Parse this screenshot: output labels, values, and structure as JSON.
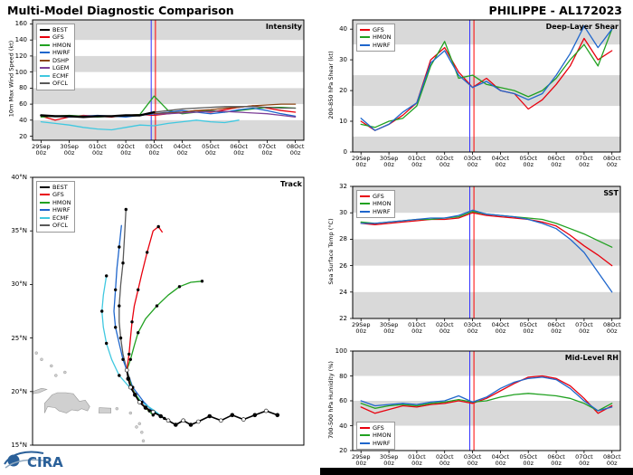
{
  "header": {
    "left": "Multi-Model Diagnostic Comparison",
    "right": "PHILIPPE - AL172023"
  },
  "time_axis": {
    "dates": [
      "29Sep",
      "30Sep",
      "01Oct",
      "02Oct",
      "03Oct",
      "04Oct",
      "05Oct",
      "06Oct",
      "07Oct",
      "08Oct"
    ],
    "hour": "00z",
    "positions": [
      0,
      1,
      2,
      3,
      4,
      5,
      6,
      7,
      8,
      9
    ]
  },
  "colors": {
    "BEST": "#000000",
    "GFS": "#e8000d",
    "HMON": "#21a121",
    "HWRF": "#1f66cc",
    "DSHP": "#8b4513",
    "LGEM": "#7d3f98",
    "ECMF": "#40c8e0",
    "OFCL": "#595959",
    "band": "#d9d9d9",
    "land": "#d0d0d0",
    "land_edge": "#9a9a9a",
    "vline_blue": "#3333ff",
    "vline_red": "#ff0000"
  },
  "panels": {
    "intensity": {
      "label": "Intensity",
      "ylabel": "10m Max Wind Speed (kt)",
      "legend": [
        "BEST",
        "GFS",
        "HMON",
        "HWRF",
        "DSHP",
        "LGEM",
        "ECMF",
        "OFCL"
      ]
    },
    "track": {
      "label": "Track",
      "legend": [
        "BEST",
        "GFS",
        "HMON",
        "HWRF",
        "ECMF",
        "OFCL"
      ]
    },
    "shear": {
      "label": "Deep-Layer Shear",
      "ylabel": "200-850 hPa Shear (kt)",
      "legend": [
        "GFS",
        "HMON",
        "HWRF"
      ]
    },
    "sst": {
      "label": "SST",
      "ylabel": "Sea Surface Temp (°C)",
      "legend": [
        "GFS",
        "HMON",
        "HWRF"
      ]
    },
    "rh": {
      "label": "Mid-Level RH",
      "ylabel": "700-500 hPa Humidity (%)",
      "legend": [
        "GFS",
        "HMON",
        "HWRF"
      ]
    }
  },
  "footer": {
    "logo_text": "CIRA"
  },
  "chart_data": [
    {
      "id": "intensity",
      "type": "line",
      "title": "Intensity",
      "ylabel": "10m Max Wind Speed (kt)",
      "xlim": [
        -0.3,
        9.3
      ],
      "ylim": [
        15,
        165
      ],
      "yticks": [
        20,
        40,
        60,
        80,
        100,
        120,
        140,
        160
      ],
      "bands": [
        [
          140,
          165
        ],
        [
          100,
          120
        ],
        [
          60,
          80
        ],
        [
          15,
          40
        ]
      ],
      "xticks_time": true,
      "vlines": [
        {
          "x": 3.9,
          "color": "#3333ff"
        },
        {
          "x": 4.05,
          "color": "#ff0000"
        }
      ],
      "series": [
        {
          "name": "GFS",
          "x0": 0,
          "dx": 0.5,
          "y": [
            45,
            40,
            44,
            46,
            45,
            44,
            46,
            47,
            46,
            48,
            50,
            52,
            50,
            53,
            56,
            58,
            55,
            52,
            50
          ]
        },
        {
          "name": "HMON",
          "x0": 0,
          "dx": 0.5,
          "y": [
            44,
            45,
            46,
            45,
            44,
            45,
            46,
            47,
            70,
            52,
            48,
            50,
            52,
            50,
            52,
            54,
            56,
            56,
            55
          ]
        },
        {
          "name": "HWRF",
          "x0": 0,
          "dx": 0.5,
          "y": [
            46,
            45,
            44,
            45,
            46,
            45,
            44,
            46,
            48,
            50,
            52,
            50,
            48,
            50,
            53,
            55,
            52,
            48,
            45
          ]
        },
        {
          "name": "ECMF",
          "x0": 0,
          "dx": 0.5,
          "y": [
            38,
            36,
            34,
            31,
            29,
            28,
            31,
            34,
            33,
            36,
            38,
            40,
            38,
            37,
            40
          ]
        },
        {
          "name": "DSHP",
          "x0": 4,
          "dx": 0.5,
          "y": [
            48,
            49,
            50,
            52,
            53,
            55,
            56,
            58,
            59,
            60,
            60
          ]
        },
        {
          "name": "LGEM",
          "x0": 4,
          "dx": 0.5,
          "y": [
            47,
            48,
            49,
            50,
            51,
            51,
            50,
            49,
            48,
            46,
            44
          ]
        },
        {
          "name": "OFCL",
          "x0": 4,
          "dx": 0.5,
          "y": [
            50,
            52,
            54,
            55,
            56,
            57,
            57,
            57,
            56,
            55,
            55
          ]
        },
        {
          "name": "BEST",
          "x0": 0,
          "dx": 0.5,
          "lw": 2.4,
          "y": [
            46,
            45,
            45,
            44,
            45,
            45,
            46,
            46,
            50
          ]
        }
      ]
    },
    {
      "id": "track",
      "type": "map",
      "title": "Track",
      "xlim": [
        -76,
        -40
      ],
      "ylim": [
        15,
        40
      ],
      "yticks": [
        15,
        20,
        25,
        30,
        35,
        40
      ],
      "ytick_suffix": "°N",
      "islands": [
        {
          "poly": [
            [
              -74.4,
              18.0
            ],
            [
              -74.0,
              18.6
            ],
            [
              -73.0,
              18.5
            ],
            [
              -72.5,
              18.2
            ],
            [
              -71.5,
              18.0
            ],
            [
              -70.8,
              18.3
            ],
            [
              -70.0,
              18.2
            ],
            [
              -69.5,
              18.4
            ],
            [
              -68.7,
              18.2
            ],
            [
              -68.4,
              18.6
            ],
            [
              -69.0,
              19.2
            ],
            [
              -69.8,
              19.1
            ],
            [
              -70.6,
              19.8
            ],
            [
              -71.6,
              19.9
            ],
            [
              -72.7,
              19.9
            ],
            [
              -73.4,
              19.7
            ],
            [
              -74.4,
              18.9
            ]
          ]
        },
        {
          "poly": [
            [
              -67.2,
              18.0
            ],
            [
              -65.6,
              18.0
            ],
            [
              -65.6,
              18.45
            ],
            [
              -67.15,
              18.5
            ]
          ]
        },
        {
          "poly": [
            [
              -76.0,
              20.0
            ],
            [
              -74.8,
              20.3
            ],
            [
              -74.1,
              20.2
            ],
            [
              -75.1,
              19.9
            ],
            [
              -76.0,
              19.8
            ]
          ]
        },
        {
          "dot": [
            -61.5,
            16.2
          ]
        },
        {
          "dot": [
            -61.3,
            15.4
          ]
        },
        {
          "dot": [
            -61.8,
            17.0
          ]
        },
        {
          "dot": [
            -62.2,
            16.7
          ]
        },
        {
          "dot": [
            -63.0,
            18.0
          ]
        },
        {
          "dot": [
            -64.8,
            18.4
          ]
        },
        {
          "dot": [
            -71.7,
            21.8
          ]
        },
        {
          "dot": [
            -72.9,
            21.5
          ]
        },
        {
          "dot": [
            -73.5,
            22.4
          ]
        },
        {
          "dot": [
            -74.8,
            23.0
          ]
        },
        {
          "dot": [
            -75.5,
            23.6
          ]
        }
      ],
      "series": [
        {
          "name": "OFCL",
          "markers": "dots",
          "x": [
            -63.5,
            -64.0,
            -64.3,
            -64.5,
            -64.5,
            -64.3,
            -64.0,
            -63.8,
            -63.6
          ],
          "y": [
            22.0,
            23.5,
            25.0,
            26.5,
            28.0,
            30.0,
            32.0,
            34.5,
            37.0
          ]
        },
        {
          "name": "HWRF",
          "markers": "dots",
          "x": [
            -59.8,
            -61.2,
            -62.7,
            -63.5,
            -64.0,
            -64.5,
            -65.0,
            -65.2,
            -65.0,
            -64.8,
            -64.5,
            -64.2
          ],
          "y": [
            18.0,
            19.0,
            20.4,
            22.0,
            23.0,
            24.5,
            26.0,
            27.5,
            29.5,
            31.5,
            33.5,
            35.5
          ]
        },
        {
          "name": "ECMF",
          "markers": "dots",
          "x": [
            -58.5,
            -60.0,
            -61.5,
            -63.0,
            -64.5,
            -65.5,
            -66.2,
            -66.6,
            -66.8,
            -66.6,
            -66.2
          ],
          "y": [
            17.5,
            18.3,
            19.0,
            20.3,
            21.5,
            23.0,
            24.5,
            26.0,
            27.5,
            29.0,
            30.8
          ]
        },
        {
          "name": "HMON",
          "markers": "dots",
          "x": [
            -60.0,
            -61.5,
            -62.8,
            -63.5,
            -63.0,
            -62.5,
            -62.0,
            -61.0,
            -59.5,
            -58.0,
            -56.5,
            -55.0,
            -53.5
          ],
          "y": [
            17.8,
            18.8,
            20.3,
            22.0,
            23.0,
            24.3,
            25.5,
            26.8,
            28.0,
            29.0,
            29.8,
            30.2,
            30.3
          ]
        },
        {
          "name": "GFS",
          "markers": "dots",
          "x": [
            -60.5,
            -62.0,
            -63.0,
            -63.5,
            -63.2,
            -63.0,
            -62.8,
            -62.5,
            -62.0,
            -61.5,
            -60.8,
            -60.0,
            -59.3,
            -58.8
          ],
          "y": [
            18.2,
            19.2,
            20.5,
            22.0,
            23.5,
            25.0,
            26.5,
            28.0,
            29.5,
            31.0,
            33.0,
            35.0,
            35.4,
            34.9
          ]
        },
        {
          "name": "BEST",
          "markers": "alt",
          "lw": 1.6,
          "x": [
            -43.5,
            -45.0,
            -46.5,
            -48.0,
            -49.5,
            -51.0,
            -52.5,
            -54.0,
            -55.0,
            -56.0,
            -57.0,
            -58.0,
            -59.0,
            -60.0,
            -61.0,
            -61.8,
            -62.4,
            -63.0,
            -63.3,
            -63.5
          ],
          "y": [
            17.8,
            18.2,
            17.8,
            17.4,
            17.8,
            17.3,
            17.7,
            17.2,
            16.9,
            17.3,
            16.9,
            17.3,
            17.7,
            18.1,
            18.5,
            19.0,
            19.7,
            20.4,
            21.2,
            22.0
          ]
        }
      ]
    },
    {
      "id": "shear",
      "type": "line",
      "title": "Deep-Layer Shear",
      "ylabel": "200-850 hPa Shear (kt)",
      "xlim": [
        -0.3,
        9.3
      ],
      "ylim": [
        0,
        43
      ],
      "yticks": [
        0,
        10,
        20,
        30,
        40
      ],
      "bands": [
        [
          35,
          43
        ],
        [
          15,
          25
        ],
        [
          0,
          5
        ]
      ],
      "xticks_time": true,
      "vlines": [
        {
          "x": 3.9,
          "color": "#3333ff"
        },
        {
          "x": 4.05,
          "color": "#ff0000"
        }
      ],
      "series": [
        {
          "name": "GFS",
          "x0": 0,
          "dx": 0.5,
          "y": [
            10,
            7,
            9,
            12,
            16,
            30,
            34,
            26,
            21,
            24,
            20,
            19,
            14,
            17,
            22,
            28,
            37,
            30,
            33
          ]
        },
        {
          "name": "HMON",
          "x0": 0,
          "dx": 0.5,
          "y": [
            9,
            8,
            10,
            11,
            15,
            28,
            36,
            24,
            25,
            22,
            21,
            20,
            18,
            20,
            24,
            30,
            35,
            28,
            40
          ]
        },
        {
          "name": "HWRF",
          "x0": 0,
          "dx": 0.5,
          "y": [
            11,
            7,
            9,
            13,
            16,
            29,
            33,
            25,
            21,
            23,
            20,
            19,
            17,
            19,
            25,
            32,
            41,
            34,
            40
          ]
        }
      ]
    },
    {
      "id": "sst",
      "type": "line",
      "title": "SST",
      "ylabel": "Sea Surface Temp (°C)",
      "xlim": [
        -0.3,
        9.3
      ],
      "ylim": [
        22,
        32
      ],
      "yticks": [
        22,
        24,
        26,
        28,
        30,
        32
      ],
      "bands": [
        [
          30,
          32
        ],
        [
          26,
          28
        ],
        [
          22,
          24
        ]
      ],
      "xticks_time": true,
      "vlines": [
        {
          "x": 3.9,
          "color": "#3333ff"
        },
        {
          "x": 4.05,
          "color": "#ff0000"
        }
      ],
      "series": [
        {
          "name": "GFS",
          "x0": 0,
          "dx": 0.5,
          "y": [
            29.2,
            29.1,
            29.2,
            29.3,
            29.4,
            29.5,
            29.5,
            29.6,
            30.0,
            29.8,
            29.7,
            29.6,
            29.5,
            29.3,
            29.0,
            28.3,
            27.5,
            26.8,
            26.0
          ]
        },
        {
          "name": "HMON",
          "x0": 0,
          "dx": 0.5,
          "y": [
            29.3,
            29.2,
            29.3,
            29.4,
            29.5,
            29.5,
            29.6,
            29.7,
            30.1,
            29.9,
            29.8,
            29.7,
            29.6,
            29.5,
            29.2,
            28.8,
            28.4,
            27.9,
            27.4
          ]
        },
        {
          "name": "HWRF",
          "x0": 0,
          "dx": 0.5,
          "y": [
            29.2,
            29.2,
            29.3,
            29.4,
            29.5,
            29.6,
            29.6,
            29.8,
            30.2,
            29.9,
            29.8,
            29.7,
            29.5,
            29.2,
            28.8,
            28.0,
            27.0,
            25.5,
            24.0
          ]
        }
      ]
    },
    {
      "id": "rh",
      "type": "line",
      "title": "Mid-Level RH",
      "ylabel": "700-500 hPa Humidity (%)",
      "xlim": [
        -0.3,
        9.3
      ],
      "ylim": [
        20,
        100
      ],
      "yticks": [
        20,
        40,
        60,
        80,
        100
      ],
      "bands": [
        [
          80,
          100
        ],
        [
          40,
          60
        ]
      ],
      "xticks_time": true,
      "vlines": [
        {
          "x": 3.9,
          "color": "#3333ff"
        },
        {
          "x": 4.05,
          "color": "#ff0000"
        }
      ],
      "series": [
        {
          "name": "GFS",
          "x0": 0,
          "dx": 0.5,
          "y": [
            55,
            50,
            53,
            56,
            55,
            57,
            58,
            60,
            58,
            62,
            68,
            74,
            79,
            80,
            78,
            72,
            62,
            50,
            56
          ]
        },
        {
          "name": "HMON",
          "x0": 0,
          "dx": 0.5,
          "y": [
            58,
            54,
            56,
            57,
            56,
            58,
            59,
            61,
            59,
            60,
            63,
            65,
            66,
            65,
            64,
            62,
            58,
            52,
            58
          ]
        },
        {
          "name": "HWRF",
          "x0": 0,
          "dx": 0.5,
          "y": [
            60,
            56,
            57,
            58,
            57,
            59,
            60,
            64,
            59,
            63,
            70,
            75,
            78,
            79,
            77,
            70,
            60,
            52,
            55
          ]
        }
      ]
    }
  ]
}
